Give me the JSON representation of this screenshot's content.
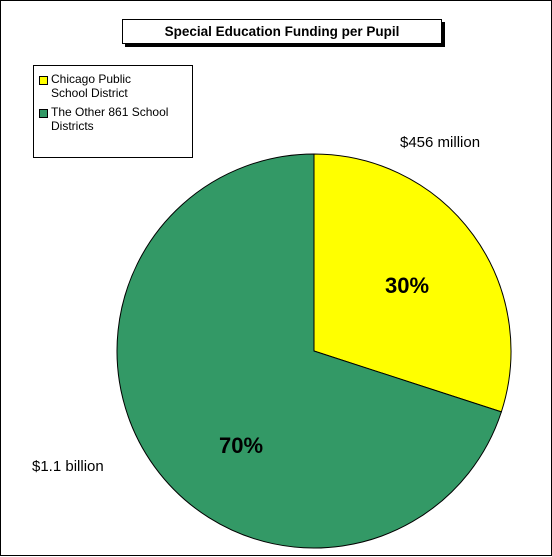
{
  "chart_data": {
    "type": "pie",
    "title": "Special Education Funding per Pupil",
    "legend_position": "top-left",
    "slices": [
      {
        "name": "Chicago Public School District",
        "value": 30,
        "label": "30%",
        "callout": "$456 million",
        "color": "#ffff00"
      },
      {
        "name": "The Other 861 School Districts",
        "value": 70,
        "label": "70%",
        "callout": "$1.1 billion",
        "color": "#339966"
      }
    ]
  }
}
